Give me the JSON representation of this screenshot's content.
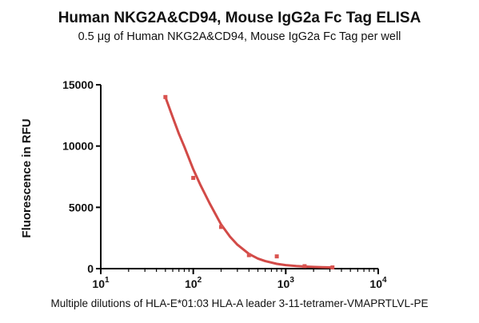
{
  "chart_data": {
    "type": "scatter",
    "title": "Human NKG2A&CD94, Mouse IgG2a Fc Tag ELISA",
    "subtitle": "0.5 μg of Human NKG2A&CD94, Mouse IgG2a Fc Tag per well",
    "xlabel": "Multiple dilutions of HLA-E*01:03 HLA-A leader 3-11-tetramer-VMAPRTLVL-PE",
    "ylabel": "Fluorescence in RFU",
    "x_scale": "log",
    "xlim": [
      10,
      10000
    ],
    "ylim": [
      0,
      15000
    ],
    "x_ticks": [
      {
        "value": 10,
        "base": "10",
        "exp": "1"
      },
      {
        "value": 100,
        "base": "10",
        "exp": "2"
      },
      {
        "value": 1000,
        "base": "10",
        "exp": "3"
      },
      {
        "value": 10000,
        "base": "10",
        "exp": "4"
      }
    ],
    "y_ticks": [
      {
        "value": 0,
        "label": "0"
      },
      {
        "value": 5000,
        "label": "5000"
      },
      {
        "value": 10000,
        "label": "10000"
      },
      {
        "value": 15000,
        "label": "15000"
      }
    ],
    "marker_color": "#d9534f",
    "fit_color": "#d24a47",
    "points": [
      {
        "x": 50,
        "y": 14000
      },
      {
        "x": 100,
        "y": 7400
      },
      {
        "x": 200,
        "y": 3400
      },
      {
        "x": 400,
        "y": 1100
      },
      {
        "x": 800,
        "y": 1000
      },
      {
        "x": 1600,
        "y": 200
      },
      {
        "x": 3200,
        "y": 100
      }
    ],
    "fit_curve": {
      "x": [
        50,
        60,
        70,
        80,
        100,
        120,
        150,
        200,
        250,
        300,
        400,
        500,
        600,
        800,
        1000,
        1300,
        1600,
        2000,
        2500,
        3200
      ],
      "y": [
        14000,
        12350,
        11000,
        9950,
        8100,
        6800,
        5350,
        3600,
        2600,
        1950,
        1200,
        820,
        610,
        390,
        290,
        210,
        170,
        140,
        120,
        100
      ]
    }
  }
}
